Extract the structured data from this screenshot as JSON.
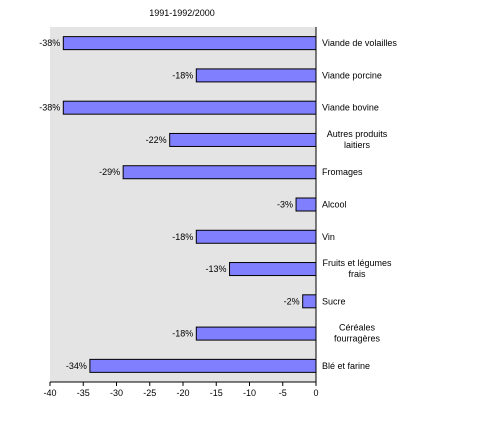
{
  "chart_data": {
    "type": "bar",
    "orientation": "horizontal",
    "title": "1991-1992/2000",
    "categories": [
      "Viande de volailles",
      "Viande porcine",
      "Viande bovine",
      "Autres produits laitiers",
      "Fromages",
      "Alcool",
      "Vin",
      "Fruits et légumes frais",
      "Sucre",
      "Céréales fourragères",
      "Blé et farine"
    ],
    "category_lines": [
      [
        "Viande de volailles"
      ],
      [
        "Viande porcine"
      ],
      [
        "Viande bovine"
      ],
      [
        "Autres produits",
        "laitiers"
      ],
      [
        "Fromages"
      ],
      [
        "Alcool"
      ],
      [
        "Vin"
      ],
      [
        "Fruits et légumes",
        "frais"
      ],
      [
        "Sucre"
      ],
      [
        "Céréales",
        "fourragères"
      ],
      [
        "Blé et farine"
      ]
    ],
    "values": [
      -38,
      -18,
      -38,
      -22,
      -29,
      -3,
      -18,
      -13,
      -2,
      -18,
      -34
    ],
    "data_labels": [
      "-38%",
      "-18%",
      "-38%",
      "-22%",
      "-29%",
      "-3%",
      "-18%",
      "-13%",
      "-2%",
      "-18%",
      "-34%"
    ],
    "xlim": [
      -40,
      0
    ],
    "xticks": [
      "-40",
      "-35",
      "-30",
      "-25",
      "-20",
      "-15",
      "-10",
      "-5",
      "0"
    ],
    "grid": false,
    "colors": {
      "bar_fill": "#8080ff",
      "bar_stroke": "#000000",
      "plot_background": "#e4e4e4",
      "axis": "#000000"
    }
  }
}
